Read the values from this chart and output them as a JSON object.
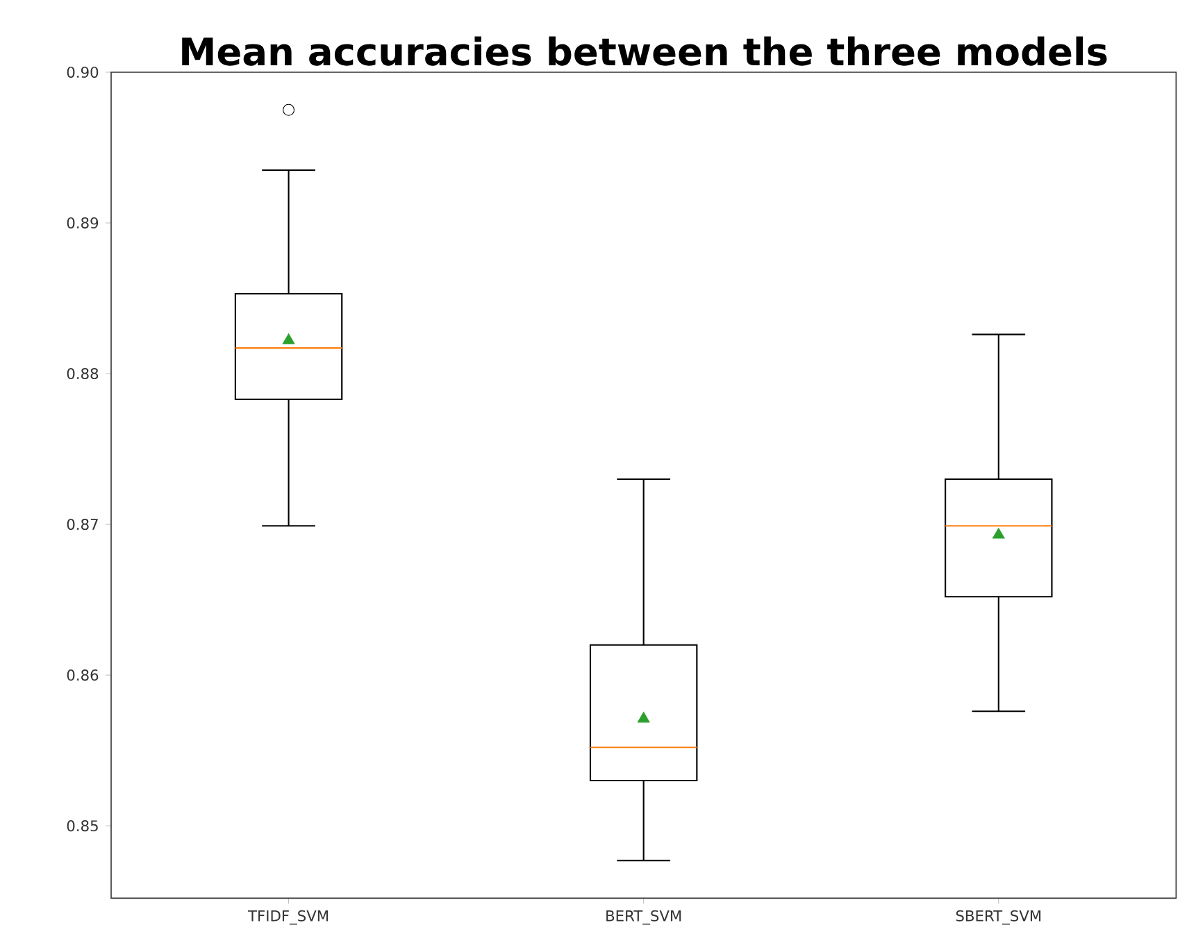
{
  "chart_data": {
    "type": "box",
    "title": "Mean accuracies between the three models",
    "categories": [
      "TFIDF_SVM",
      "BERT_SVM",
      "SBERT_SVM"
    ],
    "boxes": [
      {
        "low": 0.8699,
        "q1": 0.8783,
        "median": 0.8817,
        "q3": 0.8853,
        "high": 0.8935,
        "mean": 0.8822,
        "outliers": [
          0.8975
        ]
      },
      {
        "low": 0.8477,
        "q1": 0.853,
        "median": 0.8552,
        "q3": 0.862,
        "high": 0.873,
        "mean": 0.8571
      },
      {
        "low": 0.8576,
        "q1": 0.8652,
        "median": 0.8699,
        "q3": 0.873,
        "high": 0.8826,
        "mean": 0.8693
      }
    ],
    "ylim": [
      0.8452,
      0.9
    ],
    "yticks": [
      0.85,
      0.86,
      0.87,
      0.88,
      0.89,
      {
        "value": 0.9,
        "label": "0.90"
      }
    ]
  }
}
